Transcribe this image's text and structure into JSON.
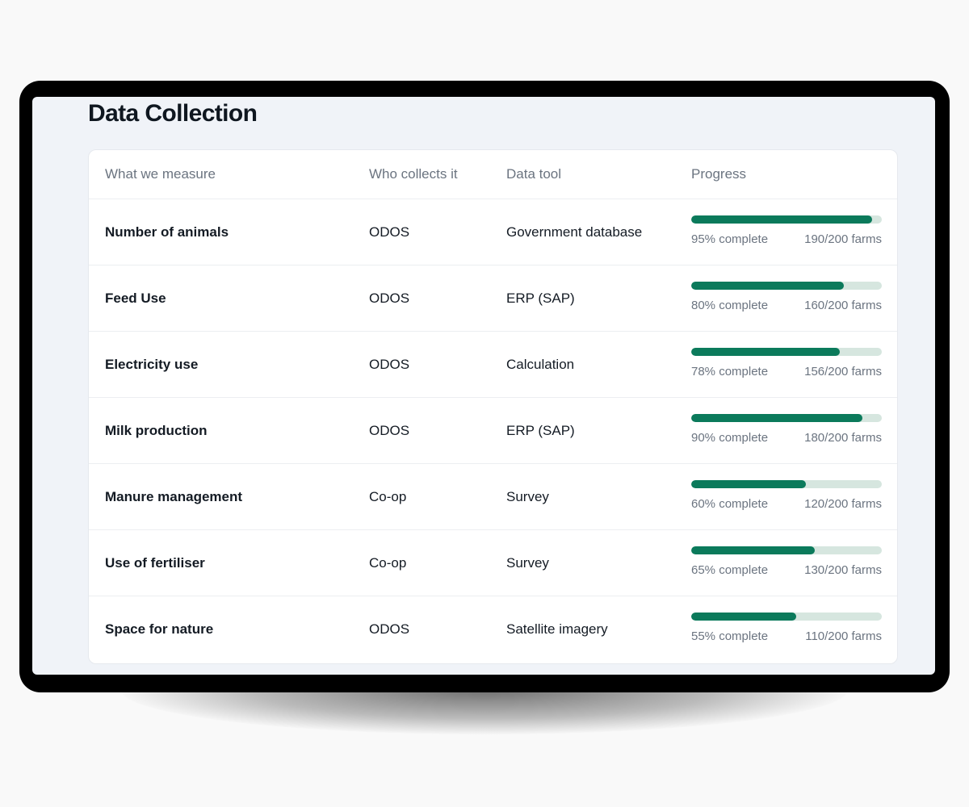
{
  "page": {
    "title": "Data Collection"
  },
  "table": {
    "headers": [
      "What we measure",
      "Who collects it",
      "Data tool",
      "Progress"
    ],
    "rows": [
      {
        "measure": "Number of animals",
        "collector": "ODOS",
        "tool": "Government database",
        "progress": 0.95,
        "percent_label": "95% complete",
        "farms_label": "190/200 farms"
      },
      {
        "measure": "Feed Use",
        "collector": "ODOS",
        "tool": "ERP (SAP)",
        "progress": 0.8,
        "percent_label": "80% complete",
        "farms_label": "160/200 farms"
      },
      {
        "measure": "Electricity use",
        "collector": "ODOS",
        "tool": "Calculation",
        "progress": 0.78,
        "percent_label": "78% complete",
        "farms_label": "156/200 farms"
      },
      {
        "measure": "Milk production",
        "collector": "ODOS",
        "tool": "ERP (SAP)",
        "progress": 0.9,
        "percent_label": "90% complete",
        "farms_label": "180/200 farms"
      },
      {
        "measure": "Manure management",
        "collector": "Co-op",
        "tool": "Survey",
        "progress": 0.6,
        "percent_label": "60% complete",
        "farms_label": "120/200 farms"
      },
      {
        "measure": "Use of fertiliser",
        "collector": "Co-op",
        "tool": "Survey",
        "progress": 0.65,
        "percent_label": "65% complete",
        "farms_label": "130/200 farms"
      },
      {
        "measure": "Space for nature",
        "collector": "ODOS",
        "tool": "Satellite imagery",
        "progress": 0.55,
        "percent_label": "55% complete",
        "farms_label": "110/200 farms"
      }
    ]
  },
  "colors": {
    "progress_fill": "#0b7a5b",
    "progress_track": "#d6e6df"
  }
}
